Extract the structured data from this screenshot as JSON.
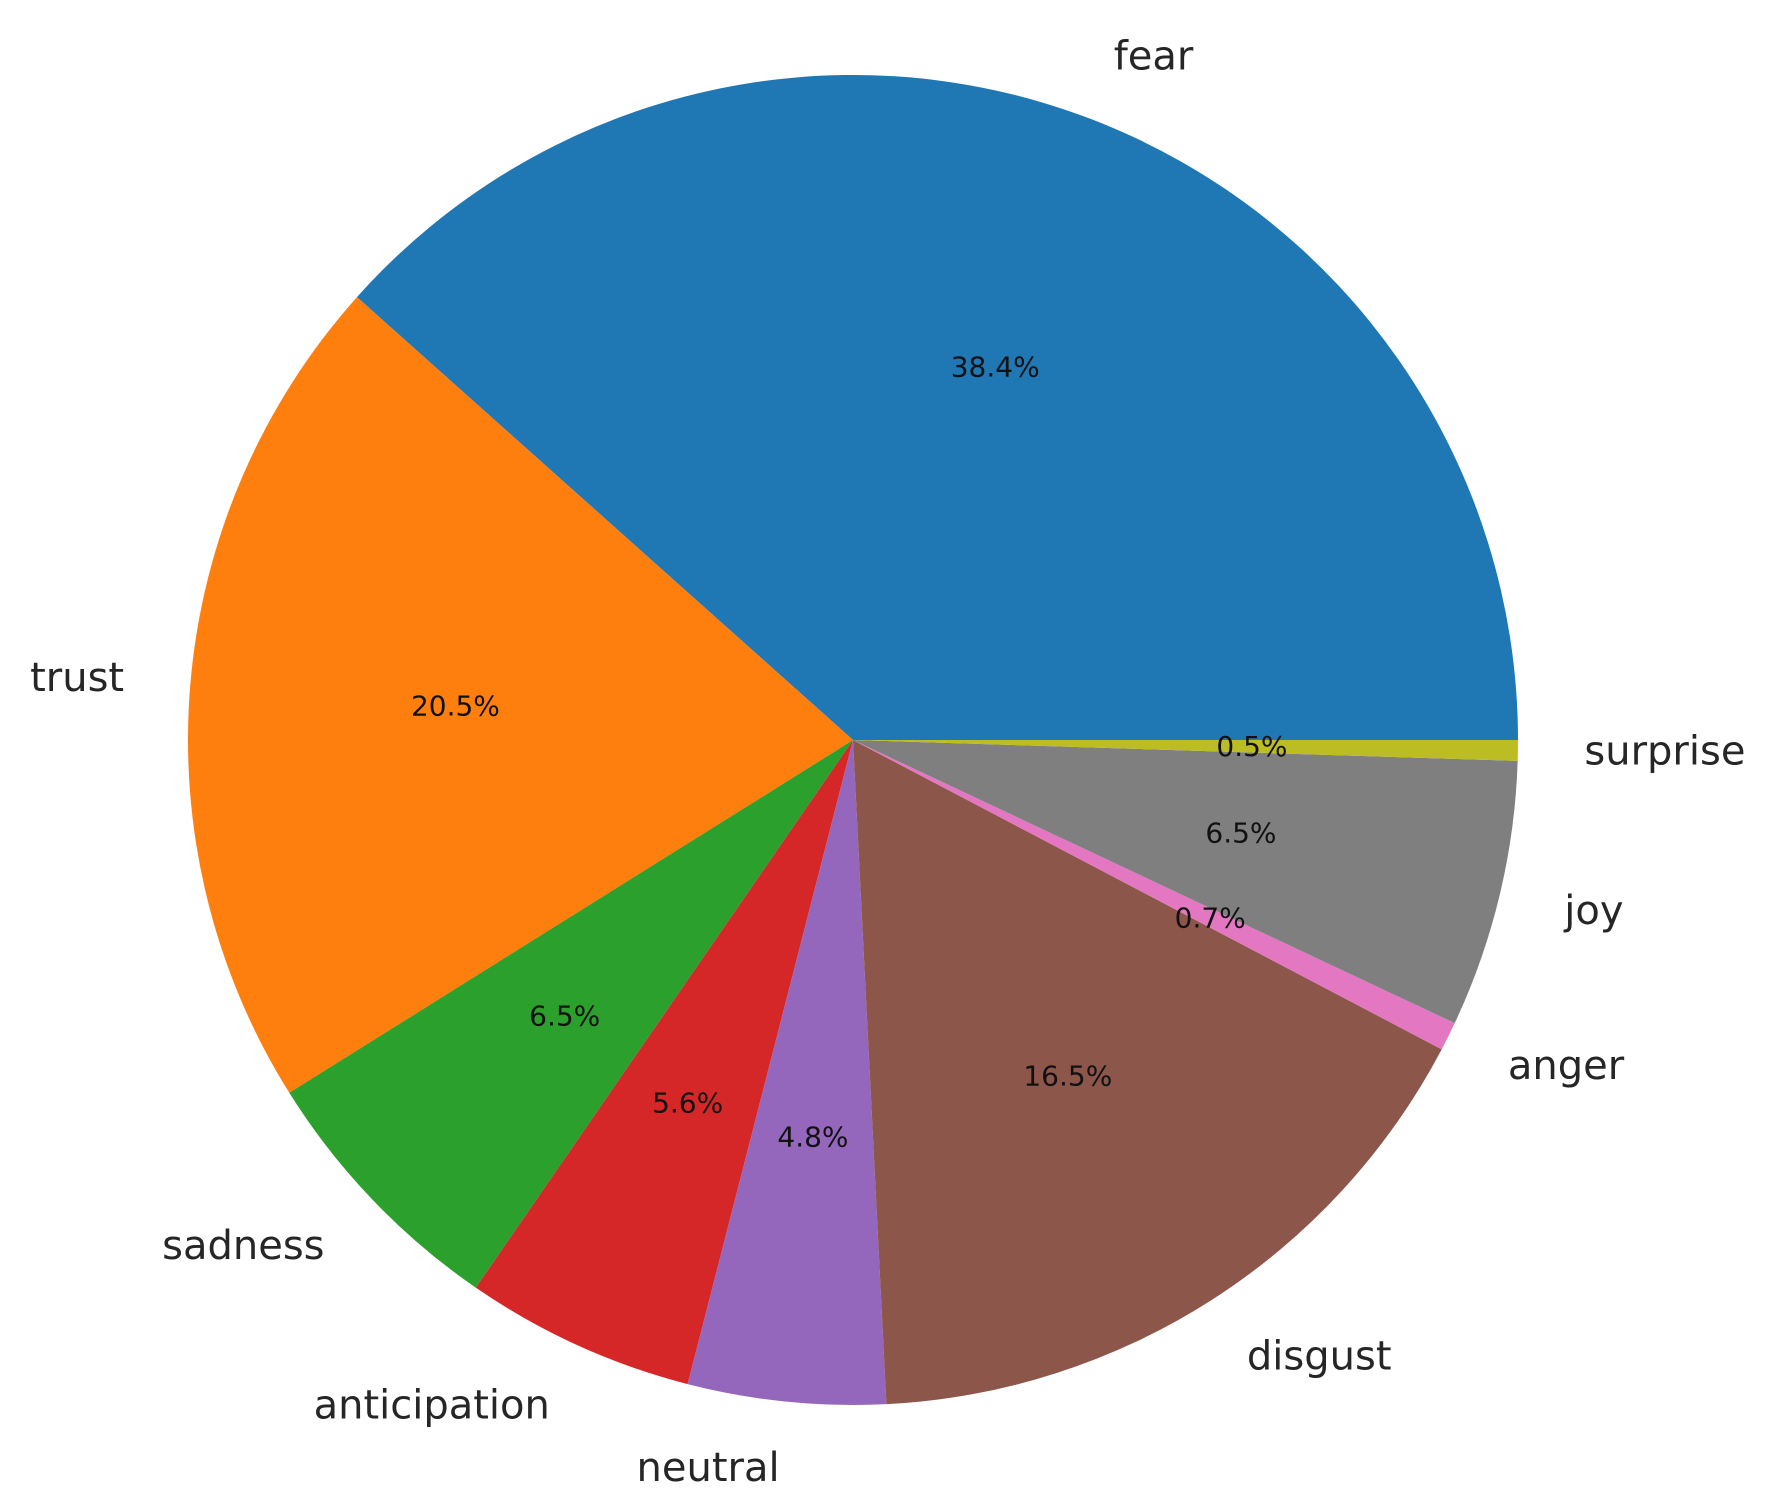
{
  "chart_data": {
    "type": "pie",
    "categories": [
      "fear",
      "trust",
      "sadness",
      "anticipation",
      "neutral",
      "disgust",
      "anger",
      "joy",
      "surprise"
    ],
    "values": [
      38.4,
      20.5,
      6.5,
      5.6,
      4.8,
      16.5,
      0.7,
      6.5,
      0.5
    ],
    "percent_labels": [
      "38.4%",
      "20.5%",
      "6.5%",
      "5.6%",
      "4.8%",
      "16.5%",
      "0.7%",
      "6.5%",
      "0.5%"
    ],
    "colors": [
      "#1f77b4",
      "#ff7f0e",
      "#2ca02c",
      "#d62728",
      "#9467bd",
      "#8c564b",
      "#e377c2",
      "#7f7f7f",
      "#bcbd22"
    ],
    "start_angle_deg": 0,
    "direction": "counterclockwise",
    "legend": "none",
    "grid": false
  }
}
